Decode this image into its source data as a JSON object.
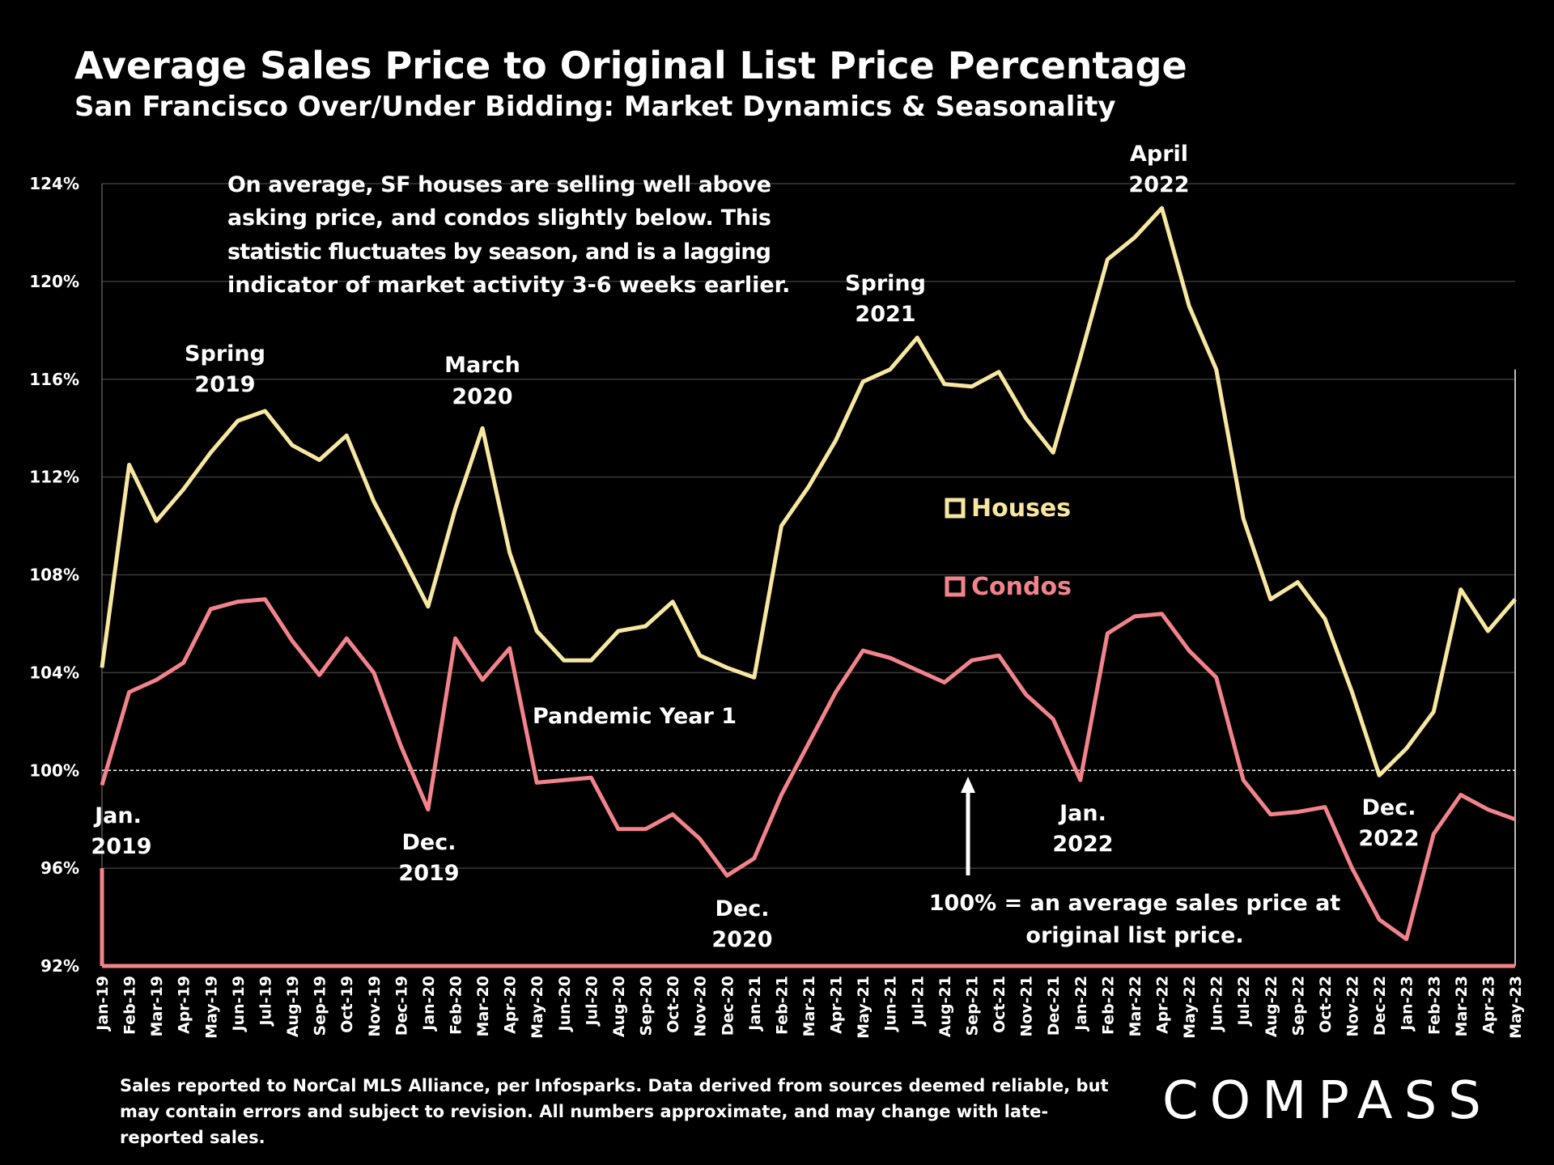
{
  "title": "Average Sales Price to Original List Price Percentage",
  "subtitle": "San Francisco Over/Under Bidding: Market Dynamics & Seasonality",
  "annotations": {
    "description": [
      "On average, SF houses are selling well above",
      "asking price, and condos slightly below. This",
      "statistic fluctuates by season, and is a lagging",
      "indicator of market activity 3-6 weeks earlier."
    ],
    "spring_2019": [
      "Spring",
      "2019"
    ],
    "march_2020": [
      "March",
      "2020"
    ],
    "spring_2021": [
      "Spring",
      "2021"
    ],
    "april_2022": [
      "April",
      "2022"
    ],
    "jan_2019": [
      "Jan.",
      "2019"
    ],
    "dec_2019": [
      "Dec.",
      "2019"
    ],
    "dec_2020": [
      "Dec.",
      "2020"
    ],
    "jan_2022": [
      "Jan.",
      "2022"
    ],
    "dec_2022": [
      "Dec.",
      "2022"
    ],
    "pandemic_year": "Pandemic Year 1",
    "note_100": [
      "100% = an average sales price at",
      "original list price."
    ]
  },
  "footnote": "Sales reported to NorCal MLS Alliance, per Infosparks. Data derived from sources deemed reliable, but may contain errors and subject to revision. All numbers approximate, and may change with late-reported sales.",
  "logo": "COMPASS",
  "chart_data": {
    "type": "line",
    "categories": [
      "Jan-19",
      "Feb-19",
      "Mar-19",
      "Apr-19",
      "May-19",
      "Jun-19",
      "Jul-19",
      "Aug-19",
      "Sep-19",
      "Oct-19",
      "Nov-19",
      "Dec-19",
      "Jan-20",
      "Feb-20",
      "Mar-20",
      "Apr-20",
      "May-20",
      "Jun-20",
      "Jul-20",
      "Aug-20",
      "Sep-20",
      "Oct-20",
      "Nov-20",
      "Dec-20",
      "Jan-21",
      "Feb-21",
      "Mar-21",
      "Apr-21",
      "May-21",
      "Jun-21",
      "Jul-21",
      "Aug-21",
      "Sep-21",
      "Oct-21",
      "Nov-21",
      "Dec-21",
      "Jan-22",
      "Feb-22",
      "Mar-22",
      "Apr-22",
      "May-22",
      "Jun-22",
      "Jul-22",
      "Aug-22",
      "Sep-22",
      "Oct-22",
      "Nov-22",
      "Dec-22",
      "Jan-23",
      "Feb-23",
      "Mar-23",
      "Apr-23",
      "May-23"
    ],
    "series": [
      {
        "name": "Houses",
        "color": "#f7e7a1",
        "values": [
          104.2,
          112.5,
          110.2,
          111.5,
          113.0,
          114.3,
          114.7,
          113.3,
          112.7,
          113.7,
          111.0,
          108.9,
          106.7,
          110.7,
          114.0,
          108.9,
          105.7,
          104.5,
          104.5,
          105.7,
          105.9,
          106.9,
          104.7,
          104.2,
          103.8,
          110.0,
          111.6,
          113.5,
          115.9,
          116.4,
          117.7,
          115.8,
          115.7,
          116.3,
          114.4,
          113.0,
          116.9,
          120.9,
          121.8,
          123.0,
          119.0,
          116.4,
          110.3,
          107.0,
          107.7,
          106.2,
          103.2,
          99.8,
          100.9,
          102.4,
          107.4,
          105.7,
          107.0
        ]
      },
      {
        "name": "Condos",
        "color": "#f2838b",
        "values": [
          99.4,
          103.2,
          103.7,
          104.4,
          106.6,
          106.9,
          107.0,
          105.3,
          103.9,
          105.4,
          104.0,
          101.0,
          98.4,
          105.4,
          103.7,
          105.0,
          99.5,
          99.6,
          99.7,
          97.6,
          97.6,
          98.2,
          97.2,
          95.7,
          96.4,
          99.0,
          101.1,
          103.2,
          104.9,
          104.6,
          104.1,
          103.6,
          104.5,
          104.7,
          103.1,
          102.1,
          99.6,
          105.6,
          106.3,
          106.4,
          104.9,
          103.8,
          99.6,
          98.2,
          98.3,
          98.5,
          96.0,
          93.9,
          93.1,
          97.4,
          99.0,
          98.4,
          98.0
        ]
      }
    ],
    "ylim": [
      92,
      124
    ],
    "yticks": [
      "92%",
      "96%",
      "100%",
      "104%",
      "108%",
      "112%",
      "116%",
      "120%",
      "124%"
    ],
    "reference_line": 100,
    "grid": true,
    "legend": [
      "Houses",
      "Condos"
    ]
  }
}
